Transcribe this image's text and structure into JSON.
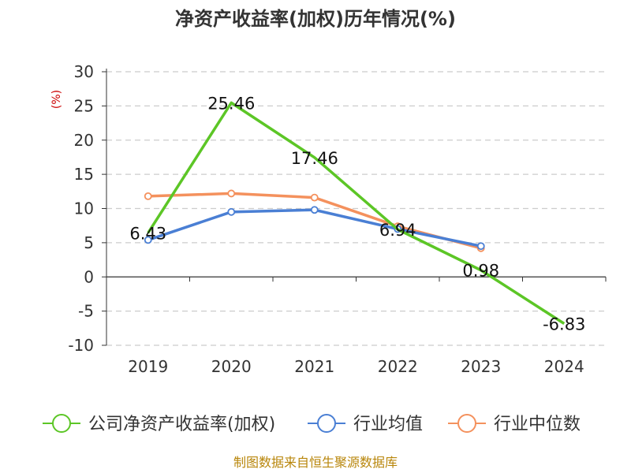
{
  "chart_data": {
    "type": "line",
    "title": "净资产收益率(加权)历年情况(%)",
    "ylabel": "(%)",
    "xlabel": "",
    "categories": [
      "2019",
      "2020",
      "2021",
      "2022",
      "2023",
      "2024"
    ],
    "ylim": [
      -10,
      30
    ],
    "yticks": [
      30,
      25,
      20,
      15,
      10,
      5,
      0,
      -5,
      -10
    ],
    "grid": true,
    "legend_position": "bottom",
    "series": [
      {
        "name": "公司净资产收益率(加权)",
        "color": "#5cc626",
        "values": [
          6.43,
          25.46,
          17.46,
          6.94,
          0.98,
          -6.83
        ],
        "labels": [
          "6.43",
          "25.46",
          "17.46",
          "6.94",
          "0.98",
          "-6.83"
        ]
      },
      {
        "name": "行业均值",
        "color": "#4a7fd4",
        "values": [
          5.4,
          9.5,
          9.8,
          7.0,
          4.5,
          null
        ]
      },
      {
        "name": "行业中位数",
        "color": "#f4915d",
        "values": [
          11.8,
          12.2,
          11.6,
          7.4,
          4.2,
          null
        ]
      }
    ],
    "source": "制图数据来自恒生聚源数据库"
  }
}
